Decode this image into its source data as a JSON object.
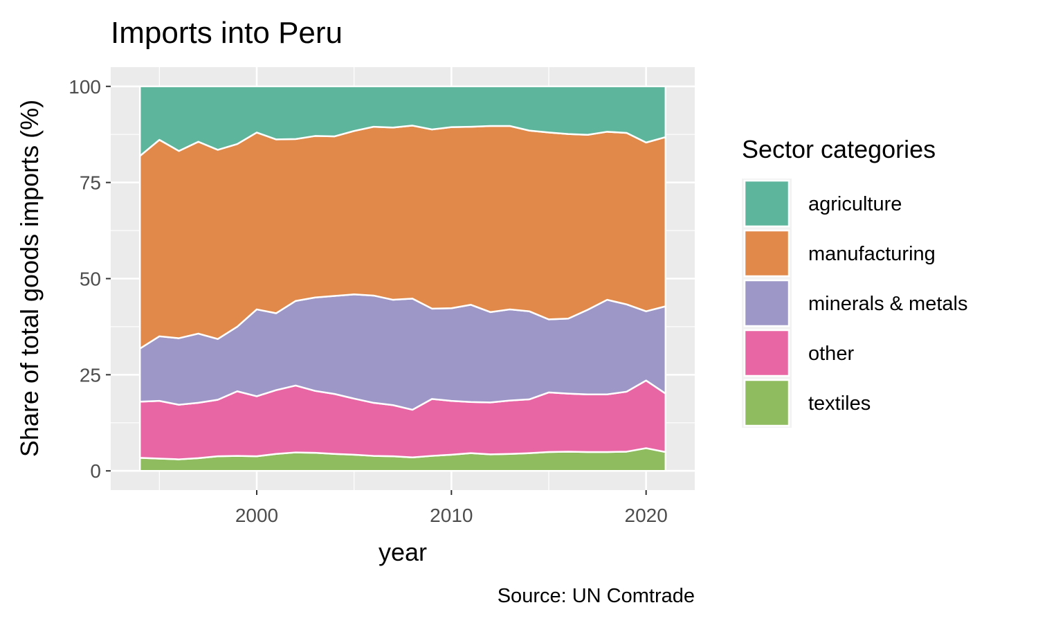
{
  "chart_data": {
    "type": "area",
    "stacked": true,
    "title": "Imports into Peru",
    "xlabel": "year",
    "ylabel": "Share of total goods imports (%)",
    "caption": "Source: UN Comtrade",
    "xlim": [
      1992.5,
      2022.5
    ],
    "ylim": [
      -5,
      105
    ],
    "x_ticks": [
      2000,
      2010,
      2020
    ],
    "y_ticks": [
      0,
      25,
      50,
      75,
      100
    ],
    "grid": true,
    "legend_title": "Sector categories",
    "legend_position": "right",
    "x": [
      1994,
      1995,
      1996,
      1997,
      1998,
      1999,
      2000,
      2001,
      2002,
      2003,
      2004,
      2005,
      2006,
      2007,
      2008,
      2009,
      2010,
      2011,
      2012,
      2013,
      2014,
      2015,
      2016,
      2017,
      2018,
      2019,
      2020,
      2021
    ],
    "series": [
      {
        "name": "textiles",
        "color": "#8fbc5e",
        "values": [
          3.4,
          3.2,
          3.0,
          3.3,
          3.8,
          3.9,
          3.8,
          4.4,
          4.8,
          4.7,
          4.4,
          4.2,
          3.9,
          3.8,
          3.5,
          3.9,
          4.2,
          4.6,
          4.3,
          4.4,
          4.6,
          4.9,
          5.0,
          4.9,
          4.9,
          5.0,
          5.9,
          4.9
        ]
      },
      {
        "name": "other",
        "color": "#e966a4",
        "values": [
          14.6,
          15.0,
          14.2,
          14.4,
          14.7,
          16.8,
          15.6,
          16.6,
          17.4,
          16.1,
          15.6,
          14.6,
          13.8,
          13.3,
          12.4,
          14.8,
          14.0,
          13.3,
          13.5,
          13.9,
          14.0,
          15.5,
          15.1,
          15.0,
          15.0,
          15.6,
          17.6,
          15.2
        ]
      },
      {
        "name": "minerals & metals",
        "color": "#9c97c6",
        "values": [
          13.8,
          16.8,
          17.3,
          18.0,
          15.8,
          16.8,
          22.6,
          20.0,
          22.0,
          24.3,
          25.5,
          27.1,
          27.9,
          27.4,
          28.9,
          23.5,
          24.1,
          25.3,
          23.5,
          23.7,
          22.9,
          19.0,
          19.5,
          22.0,
          24.6,
          22.7,
          18.0,
          22.7
        ]
      },
      {
        "name": "manufacturing",
        "color": "#e0894a",
        "values": [
          50.1,
          51.1,
          48.7,
          49.9,
          49.2,
          47.5,
          46.0,
          45.2,
          42.1,
          42.0,
          41.5,
          42.5,
          43.9,
          44.8,
          45.0,
          46.6,
          47.1,
          46.3,
          48.4,
          47.7,
          47.0,
          48.6,
          48.0,
          45.5,
          43.7,
          44.6,
          43.9,
          44.0
        ]
      },
      {
        "name": "agriculture",
        "color": "#5db59c",
        "values": [
          18.1,
          13.9,
          16.8,
          14.4,
          16.5,
          15.0,
          12.0,
          13.8,
          13.7,
          12.9,
          13.0,
          11.6,
          10.5,
          10.7,
          10.2,
          11.2,
          10.6,
          10.5,
          10.3,
          10.3,
          11.5,
          12.0,
          12.4,
          12.6,
          11.8,
          12.1,
          14.6,
          13.2
        ]
      }
    ]
  }
}
